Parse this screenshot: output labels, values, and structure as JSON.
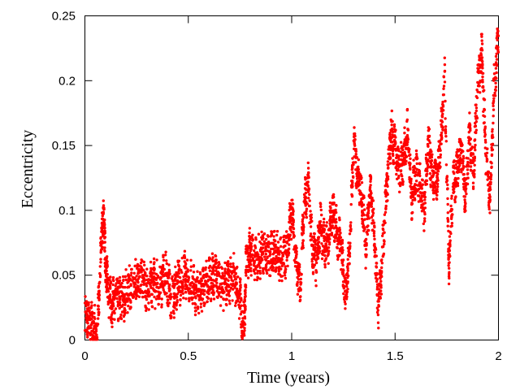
{
  "chart_data": {
    "type": "scatter",
    "title": "",
    "xlabel": "Time (years)",
    "ylabel": "Eccentricity",
    "xlim": [
      0,
      2
    ],
    "ylim": [
      0,
      0.25
    ],
    "grid": false,
    "legend": "none",
    "marker_color": "#ff0000",
    "x_ticks": [
      {
        "value": 0,
        "label": "0"
      },
      {
        "value": 0.5,
        "label": "0.5"
      },
      {
        "value": 1,
        "label": "1"
      },
      {
        "value": 1.5,
        "label": "1.5"
      },
      {
        "value": 2,
        "label": "2"
      }
    ],
    "y_ticks": [
      {
        "value": 0,
        "label": "0"
      },
      {
        "value": 0.05,
        "label": "0.05"
      },
      {
        "value": 0.1,
        "label": "0.1"
      },
      {
        "value": 0.15,
        "label": "0.15"
      },
      {
        "value": 0.2,
        "label": "0.2"
      },
      {
        "value": 0.25,
        "label": "0.25"
      }
    ],
    "series": [
      {
        "x": [
          0.0,
          0.02,
          0.04,
          0.06,
          0.08,
          0.09,
          0.1,
          0.11,
          0.13,
          0.15,
          0.18,
          0.21,
          0.24,
          0.27,
          0.3,
          0.33,
          0.36,
          0.39,
          0.42,
          0.45,
          0.48,
          0.51,
          0.54,
          0.57,
          0.6,
          0.63,
          0.66,
          0.69,
          0.72,
          0.75,
          0.77,
          0.78,
          0.8,
          0.83,
          0.86,
          0.89,
          0.92,
          0.95,
          0.98,
          1.0,
          1.02,
          1.04,
          1.06,
          1.08,
          1.1,
          1.12,
          1.14,
          1.16,
          1.18,
          1.2,
          1.22,
          1.24,
          1.26,
          1.28,
          1.3,
          1.32,
          1.34,
          1.36,
          1.38,
          1.4,
          1.42,
          1.44,
          1.46,
          1.48,
          1.5,
          1.52,
          1.54,
          1.56,
          1.58,
          1.6,
          1.62,
          1.64,
          1.66,
          1.68,
          1.7,
          1.72,
          1.74,
          1.76,
          1.78,
          1.8,
          1.82,
          1.84,
          1.86,
          1.88,
          1.9,
          1.92,
          1.94,
          1.96,
          1.98,
          2.0
        ],
        "y": [
          0.02,
          0.015,
          0.01,
          0.005,
          0.08,
          0.1,
          0.06,
          0.04,
          0.025,
          0.035,
          0.03,
          0.04,
          0.045,
          0.05,
          0.04,
          0.045,
          0.04,
          0.05,
          0.03,
          0.045,
          0.05,
          0.045,
          0.035,
          0.04,
          0.045,
          0.05,
          0.04,
          0.045,
          0.05,
          0.03,
          0.01,
          0.06,
          0.07,
          0.06,
          0.07,
          0.065,
          0.07,
          0.06,
          0.07,
          0.1,
          0.06,
          0.04,
          0.1,
          0.12,
          0.07,
          0.06,
          0.09,
          0.07,
          0.08,
          0.1,
          0.08,
          0.07,
          0.03,
          0.07,
          0.15,
          0.13,
          0.11,
          0.07,
          0.12,
          0.08,
          0.02,
          0.07,
          0.12,
          0.16,
          0.15,
          0.13,
          0.14,
          0.16,
          0.11,
          0.13,
          0.12,
          0.1,
          0.15,
          0.13,
          0.12,
          0.15,
          0.2,
          0.06,
          0.12,
          0.13,
          0.15,
          0.11,
          0.16,
          0.13,
          0.2,
          0.22,
          0.14,
          0.11,
          0.2,
          0.23
        ]
      }
    ]
  }
}
